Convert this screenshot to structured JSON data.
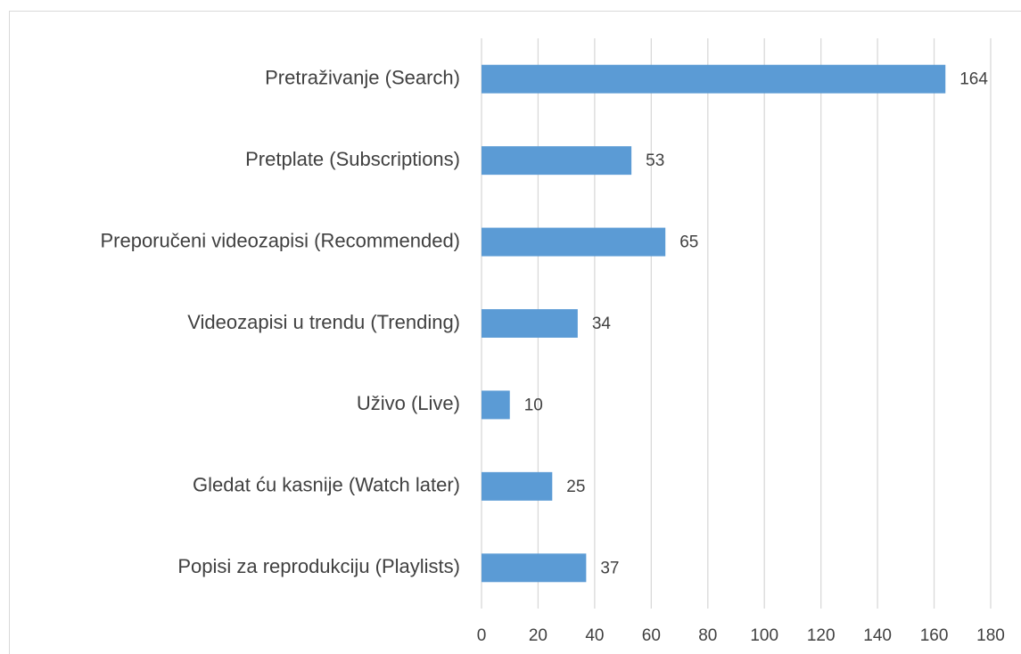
{
  "chart_data": {
    "type": "bar",
    "orientation": "horizontal",
    "categories": [
      "Pretraživanje (Search)",
      "Pretplate (Subscriptions)",
      "Preporučeni videozapisi (Recommended)",
      "Videozapisi u trendu (Trending)",
      "Uživo (Live)",
      "Gledat ću kasnije (Watch later)",
      "Popisi za reprodukciju (Playlists)"
    ],
    "values": [
      164,
      53,
      65,
      34,
      10,
      25,
      37
    ],
    "color": "#5b9bd5",
    "xlim": [
      0,
      180
    ],
    "xticks": [
      0,
      20,
      40,
      60,
      80,
      100,
      120,
      140,
      160,
      180
    ],
    "grid": true
  }
}
